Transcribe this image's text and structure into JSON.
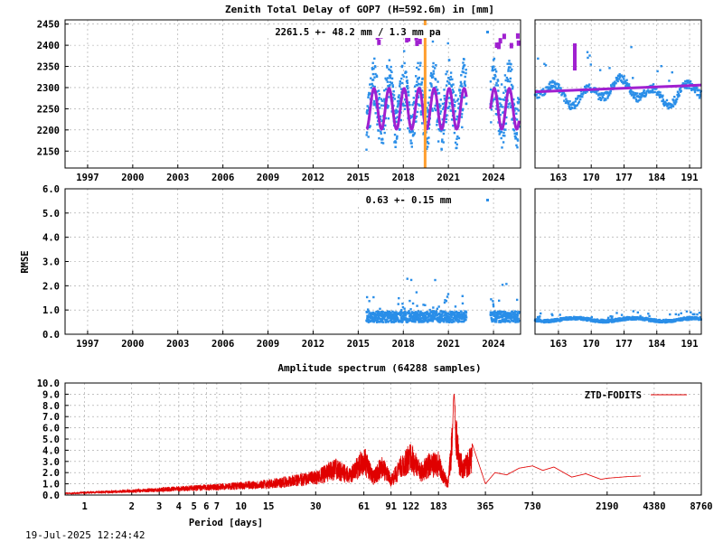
{
  "figure": {
    "top_title": "Zenith Total Delay of GOP7 (H=592.6m) in [mm]",
    "spectrum_title": "Amplitude spectrum (64288 samples)",
    "timestamp": "19-Jul-2025 12:24:42"
  },
  "colors": {
    "observations": "#2a8ee8",
    "model": "#a020d0",
    "spectrum": "#e00000",
    "event_line": "#ff9e2e"
  },
  "chart_data": [
    {
      "id": "ztd_main",
      "type": "scatter",
      "annotation": "2261.5 +-  48.2 mm /  1.3 mm pa",
      "x_axis": {
        "type": "year",
        "range": [
          1995.5,
          2025.8
        ],
        "ticks": [
          1997,
          2000,
          2003,
          2006,
          2009,
          2012,
          2015,
          2018,
          2021,
          2024
        ]
      },
      "y_axis": {
        "range": [
          2110,
          2460
        ],
        "ticks": [
          2150,
          2200,
          2250,
          2300,
          2350,
          2400,
          2450
        ]
      },
      "grid": true,
      "vertical_marker_year": 2019.45,
      "series": [
        {
          "kind": "observations",
          "segments": [
            [
              2015.55,
              2022.2
            ],
            [
              2023.8,
              2025.7
            ]
          ],
          "mean": 2261.5,
          "amplitude": 48.2,
          "trend_per_year": 1.3,
          "spread": [
            2130,
            2445
          ]
        },
        {
          "kind": "seasonal-model",
          "segments": [
            [
              2015.55,
              2022.2
            ],
            [
              2023.8,
              2025.7
            ]
          ],
          "center": 2250,
          "amplitude": 48
        }
      ]
    },
    {
      "id": "ztd_zoom",
      "type": "scatter",
      "x_axis": {
        "type": "day-of-year",
        "range": [
          158,
          193.5
        ],
        "ticks": [
          163,
          170,
          177,
          184,
          191
        ]
      },
      "y_axis": {
        "range": [
          2110,
          2460
        ],
        "ticks": []
      },
      "grid": true,
      "observations": {
        "range": [
          2240,
          2405
        ],
        "mean": 2290
      },
      "trend_line": {
        "x": [
          158,
          193.5
        ],
        "y": [
          2290,
          2306
        ]
      }
    },
    {
      "id": "rmse_main",
      "type": "scatter",
      "ylabel": "RMSE",
      "annotation": "0.63 +-  0.15 mm",
      "x_axis": {
        "type": "year",
        "range": [
          1995.5,
          2025.8
        ],
        "ticks": [
          1997,
          2000,
          2003,
          2006,
          2009,
          2012,
          2015,
          2018,
          2021,
          2024
        ]
      },
      "y_axis": {
        "range": [
          0,
          6
        ],
        "ticks": [
          "0.0",
          "1.0",
          "2.0",
          "3.0",
          "4.0",
          "5.0",
          "6.0"
        ]
      },
      "grid": true,
      "series": [
        {
          "kind": "observations",
          "segments": [
            [
              2015.55,
              2022.2
            ],
            [
              2023.8,
              2025.7
            ]
          ],
          "mean": 0.63,
          "sd": 0.15,
          "max": 2.3
        }
      ]
    },
    {
      "id": "rmse_zoom",
      "type": "scatter",
      "x_axis": {
        "type": "day-of-year",
        "range": [
          158,
          193.5
        ],
        "ticks": [
          163,
          170,
          177,
          184,
          191
        ]
      },
      "y_axis": {
        "range": [
          0,
          6
        ],
        "ticks": []
      },
      "grid": true,
      "observations": {
        "mean": 0.6,
        "range": [
          0.45,
          0.9
        ]
      }
    },
    {
      "id": "spectrum",
      "type": "line",
      "xlabel": "Period [days]",
      "x_axis": {
        "scale": "log",
        "range": [
          0.75,
          8760
        ],
        "ticks": [
          "1",
          "2",
          "3",
          "4",
          "5",
          "6",
          "7",
          "10",
          "15",
          "30",
          "61",
          "91",
          "122",
          "183",
          "365",
          "730",
          "2190",
          "4380",
          "8760"
        ]
      },
      "y_axis": {
        "range": [
          0,
          10
        ],
        "ticks": [
          "0.0",
          "1.0",
          "2.0",
          "3.0",
          "4.0",
          "5.0",
          "6.0",
          "7.0",
          "8.0",
          "9.0",
          "10.0"
        ]
      },
      "grid": true,
      "series": [
        {
          "name": "ZTD-FODITS",
          "x": [
            0.75,
            1,
            2,
            4,
            7,
            10,
            15,
            30,
            40,
            50,
            61,
            70,
            80,
            91,
            105,
            122,
            140,
            160,
            183,
            210,
            230,
            250,
            270,
            300,
            365,
            420,
            500,
            600,
            730,
            850,
            1000,
            1300,
            1600,
            2000,
            2190,
            3000,
            3600
          ],
          "y": [
            0.2,
            0.3,
            0.5,
            0.8,
            1.0,
            1.2,
            1.4,
            2.2,
            3.3,
            2.4,
            4.5,
            2.2,
            3.6,
            1.8,
            3.5,
            4.8,
            2.9,
            3.8,
            3.9,
            1.2,
            9.0,
            4.0,
            3.5,
            4.6,
            1.0,
            2.0,
            1.8,
            2.4,
            2.6,
            2.2,
            2.5,
            1.6,
            1.9,
            1.4,
            1.5,
            1.65,
            1.7
          ]
        }
      ]
    }
  ]
}
